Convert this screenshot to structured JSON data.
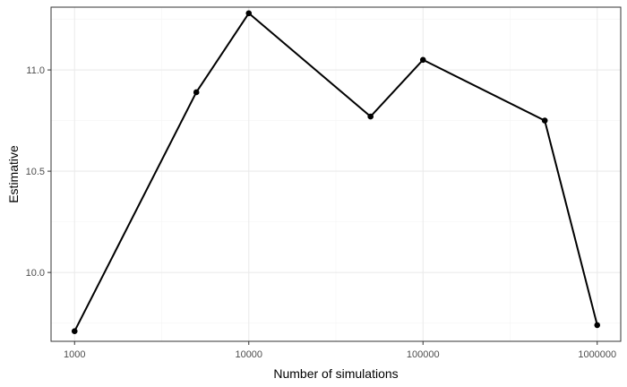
{
  "chart_data": {
    "type": "line",
    "xlabel": "Number of simulations",
    "ylabel": "Estimative",
    "x_scale": "log10",
    "x": [
      1000,
      5000,
      10000,
      50000,
      100000,
      500000,
      1000000
    ],
    "x_ticks": [
      "1000",
      "10000",
      "100000",
      "1000000"
    ],
    "y": [
      9.71,
      10.89,
      11.28,
      10.77,
      11.05,
      10.75,
      9.74
    ],
    "y_ticks": [
      "10.0",
      "10.5",
      "11.0"
    ],
    "ylim": [
      9.66,
      11.31
    ],
    "grid": true,
    "colors": {
      "series": "#000000",
      "grid": "#ebebeb",
      "border": "#333333"
    }
  }
}
